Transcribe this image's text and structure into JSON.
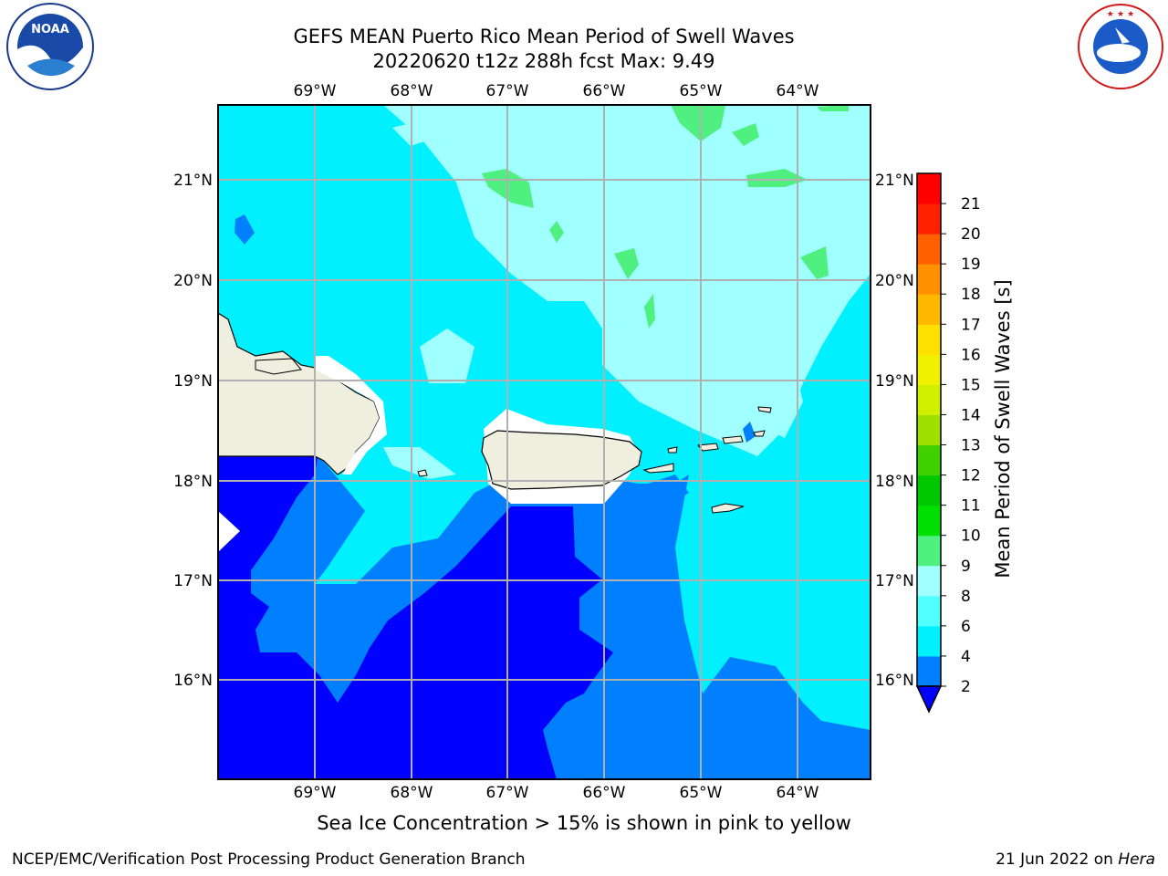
{
  "title": {
    "line1": "GEFS MEAN Puerto Rico Mean Period of Swell Waves",
    "line2": "20220620 t12z 288h fcst   Max: 9.49"
  },
  "map": {
    "lon_labels": [
      "69°W",
      "68°W",
      "67°W",
      "66°W",
      "65°W",
      "64°W"
    ],
    "lat_labels": [
      "21°N",
      "20°N",
      "19°N",
      "18°N",
      "17°N",
      "16°N"
    ],
    "field_colors": {
      "period_2_4": "#0000ff",
      "period_4_6": "#0080ff",
      "period_6_8": "#00f0ff",
      "period_8_9": "#a0ffff",
      "period_9_10": "#50f080",
      "land": "#efefdf",
      "gridlines": "#b0b0b0"
    }
  },
  "colorbar": {
    "label": "Mean Period of Swell Waves [s]",
    "ticks": [
      "2",
      "4",
      "6",
      "8",
      "9",
      "10",
      "11",
      "12",
      "13",
      "14",
      "15",
      "16",
      "17",
      "18",
      "19",
      "20",
      "21"
    ],
    "colors": [
      "#0000ff",
      "#0080ff",
      "#00f0ff",
      "#50ffff",
      "#a0ffff",
      "#50f080",
      "#00e000",
      "#00c800",
      "#40d000",
      "#a0e000",
      "#d0f000",
      "#f0f000",
      "#ffe000",
      "#ffb800",
      "#ff9000",
      "#ff6000",
      "#ff2000",
      "#ff0000"
    ]
  },
  "caption": "Sea Ice Concentration > 15% is shown in pink to yellow",
  "footer": {
    "left": "NCEP/EMC/Verification Post Processing Product Generation Branch",
    "right_date": "21 Jun 2022 on ",
    "right_host": "Hera"
  },
  "logos": {
    "noaa": "NOAA",
    "nws": "NATIONAL WEATHER SERVICE"
  }
}
